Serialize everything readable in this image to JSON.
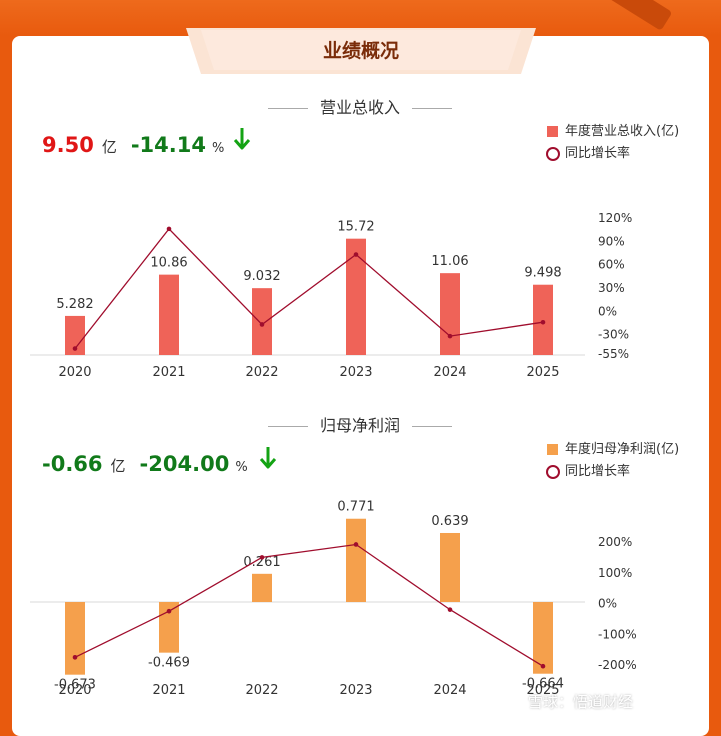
{
  "title": "业绩概况",
  "colors": {
    "revenue_bar": "#ef6358",
    "profit_bar": "#f5a04c",
    "line": "#a00d2d",
    "positive": "#e01616",
    "negative": "#117a1a",
    "arrow": "#14a314"
  },
  "sections": [
    {
      "heading": "营业总收入",
      "kpi_value": "9.50",
      "kpi_unit": "亿",
      "kpi_change": "-14.14",
      "kpi_change_unit": "%",
      "legend_bar": "年度营业总收入(亿)",
      "legend_line": "同比增长率"
    },
    {
      "heading": "归母净利润",
      "kpi_value": "-0.66",
      "kpi_unit": "亿",
      "kpi_change": "-204.00",
      "kpi_change_unit": "%",
      "legend_bar": "年度归母净利润(亿)",
      "legend_line": "同比增长率"
    }
  ],
  "chart_data": [
    {
      "type": "bar",
      "title": "营业总收入",
      "categories": [
        "2020",
        "2021",
        "2022",
        "2023",
        "2024",
        "2025"
      ],
      "series": [
        {
          "name": "年度营业总收入(亿)",
          "type": "bar",
          "values": [
            5.282,
            10.86,
            9.032,
            15.72,
            11.06,
            9.498
          ],
          "labels": [
            "5.282",
            "10.86",
            "9.032",
            "15.72",
            "11.06",
            "9.498"
          ]
        },
        {
          "name": "同比增长率",
          "type": "line",
          "axis": "right",
          "values": [
            -48,
            106,
            -17,
            73,
            -32,
            -14.14
          ]
        }
      ],
      "y2_ticks": [
        "120%",
        "90%",
        "60%",
        "30%",
        "0%",
        "-30%",
        "-55%"
      ],
      "y2lim": [
        -55,
        120
      ]
    },
    {
      "type": "bar",
      "title": "归母净利润",
      "categories": [
        "2020",
        "2021",
        "2022",
        "2023",
        "2024",
        "2025"
      ],
      "series": [
        {
          "name": "年度归母净利润(亿)",
          "type": "bar",
          "values": [
            -0.673,
            -0.469,
            0.261,
            0.771,
            0.639,
            -0.664
          ],
          "labels": [
            "-0.673",
            "-0.469",
            "0.261",
            "0.771",
            "0.639",
            "-0.664"
          ]
        },
        {
          "name": "同比增长率",
          "type": "line",
          "axis": "right",
          "values": [
            -175,
            -25,
            150,
            192,
            -20,
            -204
          ]
        }
      ],
      "y2_ticks": [
        "200%",
        "100%",
        "0%",
        "-100%",
        "-200%"
      ],
      "y2lim": [
        -200,
        200
      ]
    }
  ],
  "watermark": "雪球：悟道财经"
}
